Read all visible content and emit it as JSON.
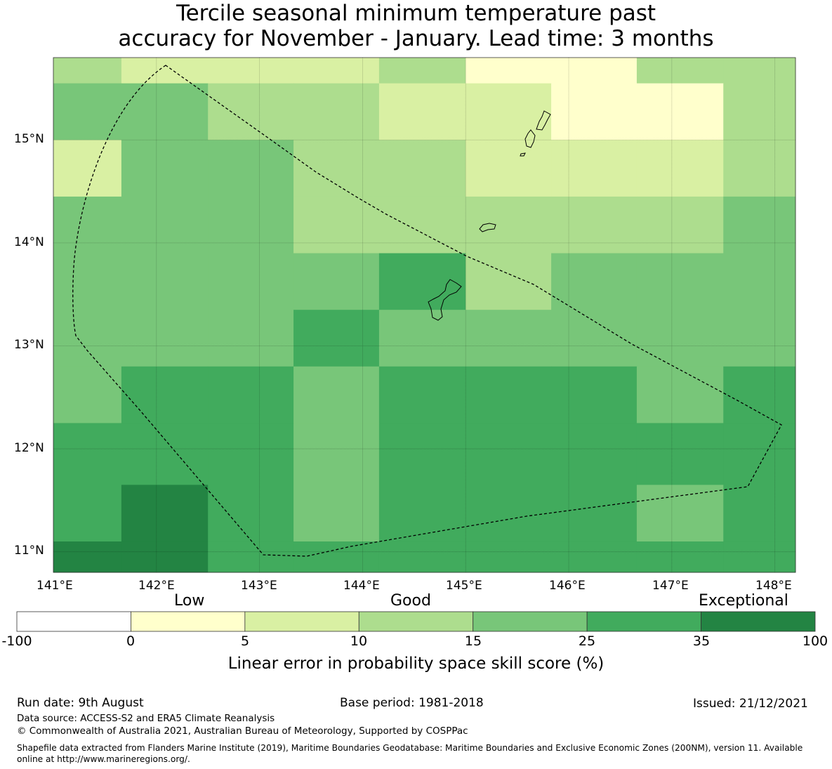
{
  "title": {
    "line1": "Tercile seasonal minimum temperature past",
    "line2": "accuracy for November - January. Lead time: 3 months"
  },
  "map": {
    "lon_labels": [
      "141°E",
      "142°E",
      "143°E",
      "144°E",
      "145°E",
      "146°E",
      "147°E",
      "148°E"
    ],
    "lat_labels": [
      "15°N",
      "14°N",
      "13°N",
      "12°N",
      "11°N"
    ],
    "lon_values": [
      141,
      142,
      143,
      144,
      145,
      146,
      147,
      148
    ],
    "lat_values": [
      15,
      14,
      13,
      12,
      11
    ],
    "extent": {
      "lon": [
        141.0,
        148.2
      ],
      "lat": [
        10.8,
        15.8
      ]
    },
    "grid_lon_edges": [
      140.66,
      141.66,
      142.5,
      143.33,
      144.16,
      145.0,
      145.83,
      146.66,
      147.5,
      148.33
    ],
    "grid_lat_edges": [
      15.8,
      15.55,
      15.0,
      14.45,
      13.9,
      13.35,
      12.8,
      12.25,
      11.65,
      11.1,
      10.8
    ],
    "cell_classes": [
      [
        3,
        2,
        2,
        2,
        3,
        1,
        1,
        3,
        3
      ],
      [
        4,
        4,
        3,
        3,
        2,
        2,
        1,
        1,
        3
      ],
      [
        2,
        4,
        4,
        3,
        3,
        2,
        2,
        2,
        3
      ],
      [
        4,
        4,
        4,
        3,
        3,
        3,
        3,
        3,
        4
      ],
      [
        4,
        4,
        4,
        4,
        5,
        3,
        4,
        4,
        4
      ],
      [
        4,
        4,
        4,
        5,
        4,
        4,
        4,
        4,
        4
      ],
      [
        4,
        5,
        5,
        4,
        5,
        5,
        5,
        4,
        5
      ],
      [
        5,
        5,
        5,
        4,
        5,
        5,
        5,
        5,
        5
      ],
      [
        5,
        6,
        5,
        4,
        5,
        5,
        5,
        4,
        5
      ],
      [
        6,
        6,
        5,
        5,
        5,
        5,
        5,
        5,
        5
      ]
    ]
  },
  "colorbar": {
    "categories": [
      "Low",
      "Good",
      "Exceptional"
    ],
    "ticks": [
      "-100",
      "0",
      "5",
      "10",
      "15",
      "25",
      "35",
      "100"
    ],
    "colors": [
      "#ffffff",
      "#ffffcc",
      "#d9f0a3",
      "#addd8e",
      "#78c679",
      "#41ab5d",
      "#238443"
    ],
    "label": "Linear error in probability space skill score (%)"
  },
  "footer": {
    "run_date": "Run date: 9th August",
    "base_period": "Base period: 1981-2018",
    "issued": "Issued: 21/12/2021",
    "data_source": "Data source: ACCESS-S2 and ERA5 Climate Reanalysis",
    "copyright": "© Commonwealth of Australia 2021, Australian Bureau of Meteorology, Supported by COSPPac",
    "shapefile": "Shapefile data extracted from Flanders Marine Institute (2019), Maritime Boundaries Geodatabase: Maritime Boundaries and Exclusive Economic Zones (200NM), version 11. Available online at http://www.marineregions.org/."
  }
}
